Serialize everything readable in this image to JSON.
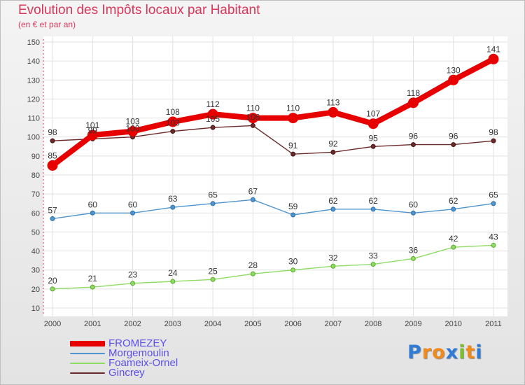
{
  "chart_data": {
    "type": "line",
    "title": "Evolution des Impôts locaux par Habitant",
    "subtitle": "(en € et par an)",
    "xlabel": "",
    "ylabel": "",
    "ylim": [
      10,
      150
    ],
    "yticks": [
      10,
      20,
      30,
      40,
      50,
      60,
      70,
      80,
      90,
      100,
      110,
      120,
      130,
      140,
      150
    ],
    "categories": [
      "2000",
      "2001",
      "2002",
      "2003",
      "2004",
      "2005",
      "2006",
      "2007",
      "2008",
      "2009",
      "2010",
      "2011"
    ],
    "grid": true,
    "legend_position": "bottom-left",
    "series": [
      {
        "name": "FROMEZEY",
        "color": "#e60000",
        "values": [
          85,
          101,
          103,
          108,
          112,
          110,
          110,
          113,
          107,
          118,
          130,
          141
        ]
      },
      {
        "name": "Morgemoulin",
        "color": "#4f95cf",
        "values": [
          57,
          60,
          60,
          63,
          65,
          67,
          59,
          62,
          62,
          60,
          62,
          65
        ]
      },
      {
        "name": "Foameix-Ornel",
        "color": "#8fdc63",
        "values": [
          20,
          21,
          23,
          24,
          25,
          28,
          30,
          32,
          33,
          36,
          42,
          43
        ]
      },
      {
        "name": "Gincrey",
        "color": "#6b2a2a",
        "values": [
          98,
          99,
          100,
          103,
          105,
          106,
          91,
          92,
          95,
          96,
          96,
          98
        ]
      }
    ]
  },
  "logo": {
    "letters": [
      {
        "char": "P",
        "color": "#2f7bd6"
      },
      {
        "char": "r",
        "color": "#f08a1c"
      },
      {
        "char": "o",
        "color": "#f08a1c"
      },
      {
        "char": "x",
        "color": "#2f7bd6"
      },
      {
        "char": "i",
        "color": "#7bbf2a"
      },
      {
        "char": "t",
        "color": "#f08a1c"
      },
      {
        "char": "i",
        "color": "#2f7bd6"
      }
    ]
  }
}
